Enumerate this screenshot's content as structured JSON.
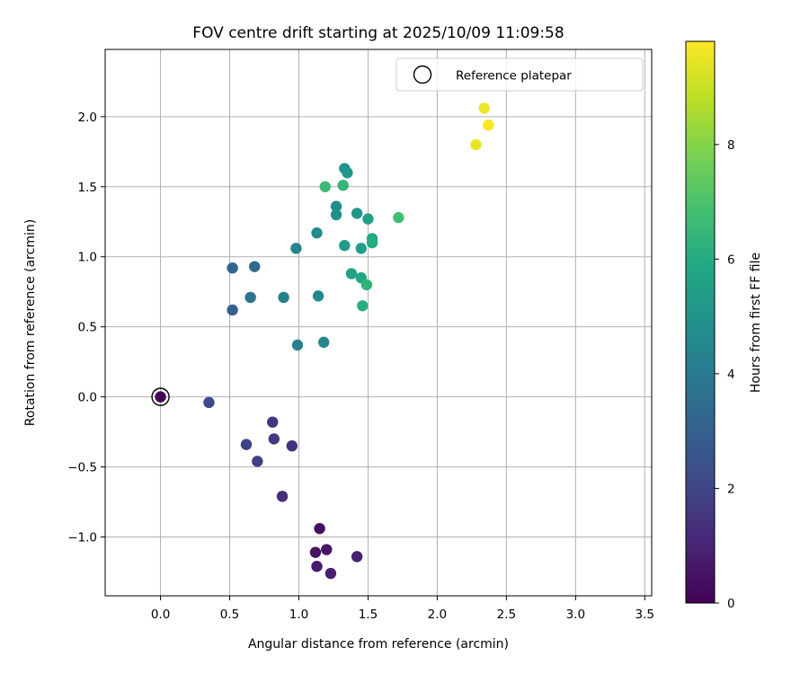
{
  "chart_data": {
    "type": "scatter",
    "title": "FOV centre drift starting at 2025/10/09 11:09:58",
    "xlabel": "Angular distance from reference (arcmin)",
    "ylabel": "Rotation from reference (arcmin)",
    "xlim": [
      -0.4,
      3.55
    ],
    "ylim": [
      -1.42,
      2.48
    ],
    "xticks": [
      0.0,
      0.5,
      1.0,
      1.5,
      2.0,
      2.5,
      3.0,
      3.5
    ],
    "xtick_labels": [
      "0.0",
      "0.5",
      "1.0",
      "1.5",
      "2.0",
      "2.5",
      "3.0",
      "3.5"
    ],
    "yticks": [
      -1.0,
      -0.5,
      0.0,
      0.5,
      1.0,
      1.5,
      2.0
    ],
    "ytick_labels": [
      "−1.0",
      "−0.5",
      "0.0",
      "0.5",
      "1.0",
      "1.5",
      "2.0"
    ],
    "grid": true,
    "legend": {
      "position": "top-right",
      "entries": [
        {
          "label": "Reference platepar",
          "marker": "open-circle"
        }
      ]
    },
    "colorbar": {
      "label": "Hours from first FF file",
      "colormap": "viridis",
      "range": [
        0,
        9.8
      ],
      "ticks": [
        0,
        2,
        4,
        6,
        8
      ],
      "tick_labels": [
        "0",
        "2",
        "4",
        "6",
        "8"
      ]
    },
    "reference_point": {
      "x": 0.0,
      "y": 0.0,
      "hours": 0.0
    },
    "points": [
      {
        "x": 0.0,
        "y": 0.0,
        "hours": 0.0
      },
      {
        "x": 1.15,
        "y": -0.94,
        "hours": 0.4
      },
      {
        "x": 1.12,
        "y": -1.11,
        "hours": 0.5
      },
      {
        "x": 1.2,
        "y": -1.09,
        "hours": 0.6
      },
      {
        "x": 1.13,
        "y": -1.21,
        "hours": 0.7
      },
      {
        "x": 1.23,
        "y": -1.26,
        "hours": 0.8
      },
      {
        "x": 1.42,
        "y": -1.14,
        "hours": 0.9
      },
      {
        "x": 0.88,
        "y": -0.71,
        "hours": 1.3
      },
      {
        "x": 0.95,
        "y": -0.35,
        "hours": 1.4
      },
      {
        "x": 0.81,
        "y": -0.18,
        "hours": 1.5
      },
      {
        "x": 0.82,
        "y": -0.3,
        "hours": 1.6
      },
      {
        "x": 0.7,
        "y": -0.46,
        "hours": 1.8
      },
      {
        "x": 0.62,
        "y": -0.34,
        "hours": 1.9
      },
      {
        "x": 0.35,
        "y": -0.04,
        "hours": 2.1
      },
      {
        "x": 0.52,
        "y": 0.62,
        "hours": 3.0
      },
      {
        "x": 0.52,
        "y": 0.92,
        "hours": 3.2
      },
      {
        "x": 0.68,
        "y": 0.93,
        "hours": 3.3
      },
      {
        "x": 0.65,
        "y": 0.71,
        "hours": 3.8
      },
      {
        "x": 0.89,
        "y": 0.71,
        "hours": 4.2
      },
      {
        "x": 0.99,
        "y": 0.37,
        "hours": 4.3
      },
      {
        "x": 0.98,
        "y": 1.06,
        "hours": 4.4
      },
      {
        "x": 1.18,
        "y": 0.39,
        "hours": 4.5
      },
      {
        "x": 1.14,
        "y": 0.72,
        "hours": 4.6
      },
      {
        "x": 1.13,
        "y": 1.17,
        "hours": 4.7
      },
      {
        "x": 1.27,
        "y": 1.36,
        "hours": 4.8
      },
      {
        "x": 1.27,
        "y": 1.3,
        "hours": 4.9
      },
      {
        "x": 1.33,
        "y": 1.63,
        "hours": 5.0
      },
      {
        "x": 1.35,
        "y": 1.6,
        "hours": 5.1
      },
      {
        "x": 1.42,
        "y": 1.31,
        "hours": 5.15
      },
      {
        "x": 1.33,
        "y": 1.08,
        "hours": 5.3
      },
      {
        "x": 1.45,
        "y": 1.06,
        "hours": 5.4
      },
      {
        "x": 1.38,
        "y": 0.88,
        "hours": 5.6
      },
      {
        "x": 1.5,
        "y": 1.27,
        "hours": 5.5
      },
      {
        "x": 1.45,
        "y": 0.85,
        "hours": 5.8
      },
      {
        "x": 1.53,
        "y": 1.13,
        "hours": 5.9
      },
      {
        "x": 1.53,
        "y": 1.1,
        "hours": 6.0
      },
      {
        "x": 1.46,
        "y": 0.65,
        "hours": 6.1
      },
      {
        "x": 1.49,
        "y": 0.8,
        "hours": 6.3
      },
      {
        "x": 1.32,
        "y": 1.51,
        "hours": 6.4
      },
      {
        "x": 1.19,
        "y": 1.5,
        "hours": 6.6
      },
      {
        "x": 1.72,
        "y": 1.28,
        "hours": 6.8
      },
      {
        "x": 2.28,
        "y": 1.8,
        "hours": 9.5
      },
      {
        "x": 2.34,
        "y": 2.06,
        "hours": 9.6
      },
      {
        "x": 2.37,
        "y": 1.94,
        "hours": 9.7
      }
    ]
  }
}
